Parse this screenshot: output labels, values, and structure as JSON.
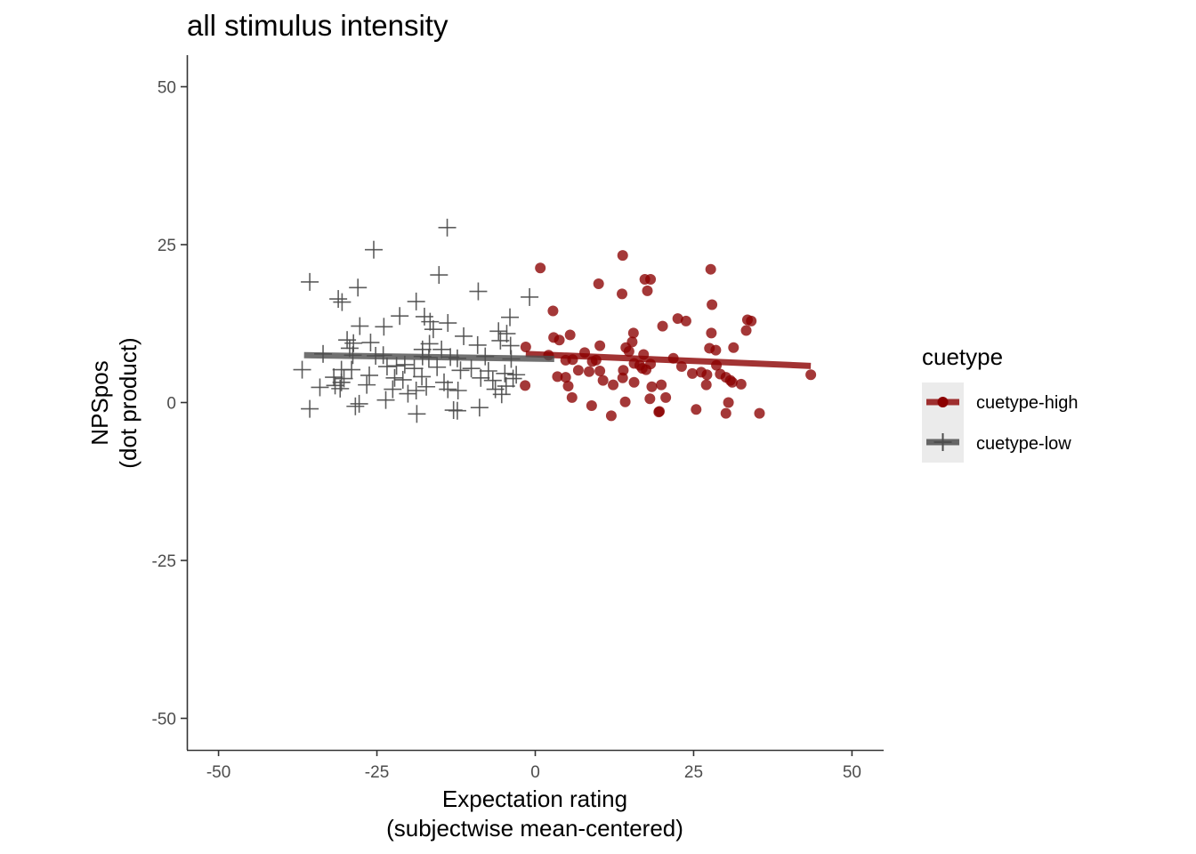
{
  "chart_data": {
    "type": "scatter",
    "title": "all stimulus intensity",
    "xlabel": [
      "Expectation rating",
      "(subjectwise mean-centered)"
    ],
    "ylabel": [
      "NPSpos",
      "(dot product)"
    ],
    "xlim": [
      -55,
      55
    ],
    "ylim": [
      -55,
      55
    ],
    "xticks": [
      -50,
      -25,
      0,
      25,
      50
    ],
    "xtick_labels": [
      "-50",
      "-25",
      "0",
      "25",
      "50"
    ],
    "yticks": [
      -50,
      -25,
      0,
      25,
      50
    ],
    "ytick_labels": [
      "-50",
      "-25",
      "0",
      "25",
      "50"
    ],
    "grid": false,
    "legend": {
      "title": "cuetype",
      "placement": "right",
      "entries": [
        "cuetype-high",
        "cuetype-low"
      ]
    },
    "series": [
      {
        "name": "cuetype-high",
        "marker": "circle",
        "color": "#8B0000",
        "fit": {
          "x": [
            -1.5,
            43.5
          ],
          "y": [
            7.7,
            5.8
          ]
        },
        "points": [
          [
            0.8,
            21.3
          ],
          [
            13.8,
            23.3
          ],
          [
            27.7,
            21.1
          ],
          [
            10,
            18.8
          ],
          [
            17.3,
            19.5
          ],
          [
            18.2,
            19.5
          ],
          [
            13.7,
            17.2
          ],
          [
            17.7,
            17.7
          ],
          [
            27.9,
            15.5
          ],
          [
            2.8,
            14.5
          ],
          [
            22.5,
            13.3
          ],
          [
            23.8,
            12.9
          ],
          [
            33.5,
            13.1
          ],
          [
            34.1,
            12.9
          ],
          [
            20.1,
            12.1
          ],
          [
            33.3,
            11.4
          ],
          [
            15.5,
            11
          ],
          [
            27.8,
            11
          ],
          [
            2.9,
            10.3
          ],
          [
            3.8,
            9.9
          ],
          [
            5.5,
            10.7
          ],
          [
            15.3,
            9.6
          ],
          [
            14.3,
            8.7
          ],
          [
            27.5,
            8.6
          ],
          [
            28.5,
            8.3
          ],
          [
            31.3,
            8.7
          ],
          [
            -1.5,
            8.8
          ],
          [
            10.2,
            9
          ],
          [
            14.8,
            8.1
          ],
          [
            17.1,
            7.6
          ],
          [
            7.8,
            7.9
          ],
          [
            4.8,
            6.7
          ],
          [
            5.9,
            6.8
          ],
          [
            9,
            6.5
          ],
          [
            9.6,
            6.7
          ],
          [
            15.6,
            6.2
          ],
          [
            16.5,
            5.9
          ],
          [
            17.5,
            5.2
          ],
          [
            18.2,
            6.1
          ],
          [
            21.8,
            7
          ],
          [
            23.1,
            5.7
          ],
          [
            28.6,
            5.9
          ],
          [
            2.1,
            7.5
          ],
          [
            6.8,
            5.1
          ],
          [
            8.5,
            4.9
          ],
          [
            10.2,
            5
          ],
          [
            13.9,
            5.1
          ],
          [
            16.9,
            5.4
          ],
          [
            24.8,
            4.6
          ],
          [
            26.2,
            4.8
          ],
          [
            27.1,
            4.4
          ],
          [
            29.2,
            4.5
          ],
          [
            30.1,
            4
          ],
          [
            30.8,
            3.5
          ],
          [
            32.5,
            2.9
          ],
          [
            -1.6,
            2.7
          ],
          [
            3.5,
            4.1
          ],
          [
            4.8,
            4
          ],
          [
            10.7,
            3.5
          ],
          [
            13.8,
            3.9
          ],
          [
            15.6,
            3.2
          ],
          [
            18.4,
            2.5
          ],
          [
            19.9,
            2.8
          ],
          [
            27,
            2.8
          ],
          [
            31.1,
            3.2
          ],
          [
            5.2,
            2.6
          ],
          [
            12.3,
            2.8
          ],
          [
            5.8,
            0.8
          ],
          [
            14.2,
            0.1
          ],
          [
            18.1,
            0.6
          ],
          [
            20.6,
            0.8
          ],
          [
            8.9,
            -0.5
          ],
          [
            12,
            -2.1
          ],
          [
            19.6,
            -1.4
          ],
          [
            19.5,
            -1.5
          ],
          [
            25.4,
            -1.1
          ],
          [
            30.1,
            -1.7
          ],
          [
            30.5,
            0
          ],
          [
            35.4,
            -1.7
          ],
          [
            43.5,
            4.4
          ]
        ]
      },
      {
        "name": "cuetype-low",
        "marker": "plus",
        "color": "#4d4d4d",
        "fit": {
          "x": [
            -36.5,
            3
          ],
          "y": [
            7.5,
            6.9
          ]
        },
        "points": [
          [
            -13.9,
            27.7
          ],
          [
            -25.5,
            24.2
          ],
          [
            -15.2,
            20.2
          ],
          [
            -35.6,
            19.1
          ],
          [
            -28,
            18.2
          ],
          [
            -9,
            17.6
          ],
          [
            -31.1,
            16.4
          ],
          [
            -30.5,
            15.9
          ],
          [
            -18.8,
            16
          ],
          [
            -0.9,
            16.7
          ],
          [
            -4,
            13.5
          ],
          [
            -21.4,
            13.7
          ],
          [
            -16.6,
            12.8
          ],
          [
            -17.5,
            13.6
          ],
          [
            -13.8,
            12.6
          ],
          [
            -27.7,
            12.1
          ],
          [
            -23.9,
            12
          ],
          [
            -16.1,
            11.6
          ],
          [
            -5.8,
            11.3
          ],
          [
            -4.5,
            10.9
          ],
          [
            -5.5,
            9.8
          ],
          [
            -11.3,
            10.5
          ],
          [
            -29.7,
            9.9
          ],
          [
            -28.7,
            9.4
          ],
          [
            -29.3,
            8.6
          ],
          [
            -26,
            9.5
          ],
          [
            -16.7,
            9.3
          ],
          [
            -17.8,
            8.4
          ],
          [
            -14.8,
            8.4
          ],
          [
            -9.1,
            9.1
          ],
          [
            -3.9,
            9
          ],
          [
            -33.5,
            7.7
          ],
          [
            -28.8,
            7.5
          ],
          [
            -25.2,
            7.4
          ],
          [
            -24,
            7.5
          ],
          [
            -17.8,
            7.3
          ],
          [
            -16.8,
            7.1
          ],
          [
            -13.4,
            7.2
          ],
          [
            -12.3,
            7
          ],
          [
            -7.9,
            7.3
          ],
          [
            -3.8,
            6.9
          ],
          [
            -36.8,
            5.2
          ],
          [
            -30.6,
            5.2
          ],
          [
            -29,
            5.2
          ],
          [
            -23.4,
            5.7
          ],
          [
            -21.9,
            5.8
          ],
          [
            -20.6,
            6
          ],
          [
            -19.1,
            5.4
          ],
          [
            -15.5,
            5.6
          ],
          [
            -11.8,
            5.1
          ],
          [
            -10.1,
            5.4
          ],
          [
            -7.4,
            5
          ],
          [
            -4.8,
            4.6
          ],
          [
            -3,
            4.4
          ],
          [
            -31.8,
            4
          ],
          [
            -30.2,
            3.8
          ],
          [
            -26.2,
            4.3
          ],
          [
            -22.2,
            3.9
          ],
          [
            -20.9,
            3.6
          ],
          [
            -17.9,
            4.1
          ],
          [
            -14.4,
            3.2
          ],
          [
            -8.6,
            3.9
          ],
          [
            -6.7,
            3.5
          ],
          [
            -3.5,
            3.8
          ],
          [
            -34,
            2.4
          ],
          [
            -31.6,
            2.7
          ],
          [
            -30.8,
            2.2
          ],
          [
            -22.5,
            2.1
          ],
          [
            -18.8,
            1.9
          ],
          [
            -13.8,
            2.1
          ],
          [
            -12.2,
            1.9
          ],
          [
            -6.3,
            2.1
          ],
          [
            -4.6,
            2.6
          ],
          [
            -30.6,
            3.2
          ],
          [
            -26.6,
            2.8
          ],
          [
            -17.2,
            2.5
          ],
          [
            -23.6,
            0.4
          ],
          [
            -20.1,
            1.4
          ],
          [
            -28.4,
            -0.6
          ],
          [
            -27.8,
            -0.2
          ],
          [
            -35.6,
            -1
          ],
          [
            -18.7,
            -1.8
          ],
          [
            -12.9,
            -1.2
          ],
          [
            -12.3,
            -1.3
          ],
          [
            -8.8,
            -0.8
          ],
          [
            -5.3,
            1.3
          ]
        ]
      }
    ]
  }
}
